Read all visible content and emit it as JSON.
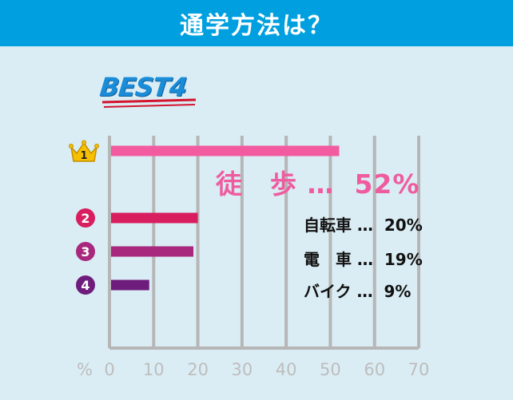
{
  "header": {
    "title": "通学方法は？"
  },
  "badge": {
    "text": "BEST4"
  },
  "colors": {
    "header_bg": "#00a0e0",
    "background": "#daedf4",
    "grid": "#b6b6b6",
    "bars": [
      "#f35ba0",
      "#d81e5f",
      "#a8287d",
      "#6e1d7c"
    ],
    "crown": "#f6c000"
  },
  "labels": [
    {
      "rank": "1",
      "text": "徒　歩 …  52%"
    },
    {
      "rank": "2",
      "text": "自転車 …  20%"
    },
    {
      "rank": "3",
      "text": "電　車 …  19%"
    },
    {
      "rank": "4",
      "text": "バイク …  9%"
    }
  ],
  "chart_data": {
    "type": "bar",
    "orientation": "horizontal",
    "categories": [
      "徒歩",
      "自転車",
      "電車",
      "バイク"
    ],
    "values": [
      52,
      20,
      19,
      9
    ],
    "xlabel": "%",
    "xlim": [
      0,
      70
    ],
    "xticks": [
      "0",
      "10",
      "20",
      "30",
      "40",
      "50",
      "60",
      "70"
    ],
    "grid": true
  }
}
